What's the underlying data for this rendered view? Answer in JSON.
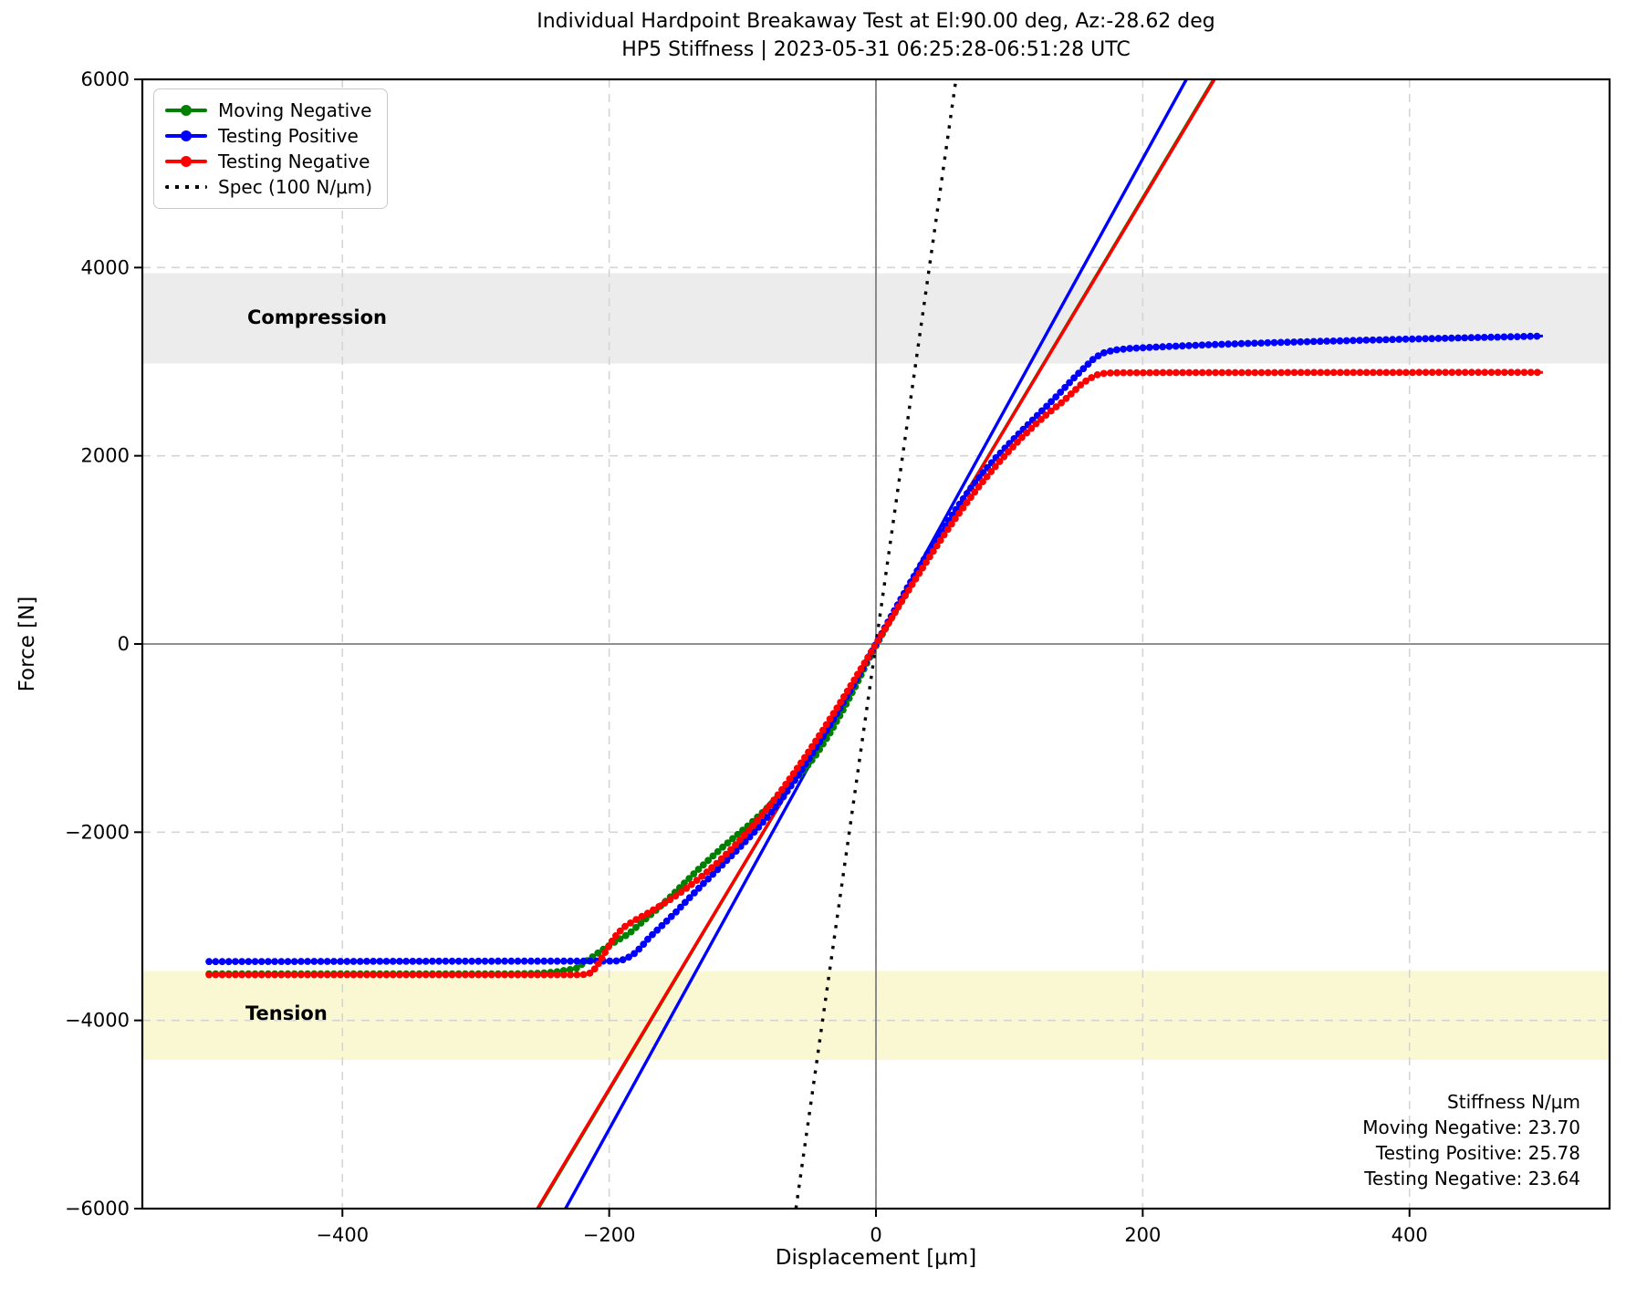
{
  "title": {
    "line1": "Individual Hardpoint Breakaway Test at El:90.00 deg, Az:-28.62 deg",
    "line2": "HP5 Stiffness | 2023-05-31 06:25:28-06:51:28 UTC"
  },
  "axes": {
    "xlabel": "Displacement [μm]",
    "ylabel": "Force [N]"
  },
  "legend": {
    "items": [
      {
        "label": "Moving Negative",
        "color": "#008000",
        "marker": true,
        "dotted": false
      },
      {
        "label": "Testing Positive",
        "color": "#0000ff",
        "marker": true,
        "dotted": false
      },
      {
        "label": "Testing Negative",
        "color": "#ff0000",
        "marker": true,
        "dotted": false
      },
      {
        "label": "Spec (100 N/μm)",
        "color": "#000000",
        "marker": false,
        "dotted": true
      }
    ]
  },
  "bands": {
    "compression": {
      "label": "Compression",
      "from_n": 2980,
      "to_n": 3940,
      "color": "#ececec",
      "label_x_um": -419,
      "label_y_n": 3470
    },
    "tension": {
      "label": "Tension",
      "from_n": -4420,
      "to_n": -3475,
      "color": "#faf8d2",
      "label_x_um": -442,
      "label_y_n": -3930
    }
  },
  "stiffness_box": {
    "title": "Stiffness N/μm",
    "line1": "Moving Negative: 23.70",
    "line2": "Testing Positive: 25.78",
    "line3": "Testing Negative: 23.64"
  },
  "chart_data": {
    "type": "line",
    "title": "Individual Hardpoint Breakaway Test at El:90.00 deg, Az:-28.62 deg — HP5 Stiffness | 2023-05-31 06:25:28-06:51:28 UTC",
    "xlabel": "Displacement [μm]",
    "ylabel": "Force [N]",
    "xlim": [
      -550,
      550
    ],
    "ylim": [
      -6000,
      6000
    ],
    "grid": true,
    "legend_position": "upper left",
    "xticks": [
      {
        "v": -400,
        "label": "−400"
      },
      {
        "v": -200,
        "label": "−200"
      },
      {
        "v": 0,
        "label": "0"
      },
      {
        "v": 200,
        "label": "200"
      },
      {
        "v": 400,
        "label": "400"
      }
    ],
    "yticks": [
      {
        "v": -6000,
        "label": "−6000"
      },
      {
        "v": -4000,
        "label": "−4000"
      },
      {
        "v": -2000,
        "label": "−2000"
      },
      {
        "v": 0,
        "label": "0"
      },
      {
        "v": 2000,
        "label": "2000"
      },
      {
        "v": 4000,
        "label": "4000"
      },
      {
        "v": 6000,
        "label": "6000"
      }
    ],
    "zero_lines": {
      "color": "#808080"
    },
    "bands": [
      {
        "name": "compression",
        "y_from": 2980,
        "y_to": 3940,
        "color": "#ececec"
      },
      {
        "name": "tension",
        "y_from": -4420,
        "y_to": -3475,
        "color": "#faf8d2"
      }
    ],
    "fit_lines": [
      {
        "name": "Moving Negative fit",
        "slope_n_per_um": 23.7,
        "color": "#008000",
        "dotted": false
      },
      {
        "name": "Testing Positive fit",
        "slope_n_per_um": 25.78,
        "color": "#0000ff",
        "dotted": false
      },
      {
        "name": "Testing Negative fit",
        "slope_n_per_um": 23.64,
        "color": "#ff0000",
        "dotted": false
      },
      {
        "name": "Spec (100 N/μm)",
        "slope_n_per_um": 100.0,
        "color": "#000000",
        "dotted": true
      }
    ],
    "series": [
      {
        "name": "Moving Negative",
        "color": "#008000",
        "marker": "o",
        "saturation_negative_n": -3505,
        "points": [
          [
            -500,
            -3505
          ],
          [
            -450,
            -3505
          ],
          [
            -400,
            -3505
          ],
          [
            -350,
            -3505
          ],
          [
            -300,
            -3505
          ],
          [
            -275,
            -3505
          ],
          [
            -260,
            -3503
          ],
          [
            -250,
            -3497
          ],
          [
            -240,
            -3485
          ],
          [
            -232,
            -3465
          ],
          [
            -225,
            -3450
          ],
          [
            -215,
            -3350
          ],
          [
            -205,
            -3250
          ],
          [
            -195,
            -3160
          ],
          [
            -185,
            -3077
          ],
          [
            -175,
            -2950
          ],
          [
            -165,
            -2830
          ],
          [
            -155,
            -2700
          ],
          [
            -145,
            -2560
          ],
          [
            -135,
            -2420
          ],
          [
            -125,
            -2290
          ],
          [
            -115,
            -2160
          ],
          [
            -105,
            -2040
          ],
          [
            -95,
            -1920
          ],
          [
            -85,
            -1790
          ],
          [
            -75,
            -1650
          ],
          [
            -65,
            -1510
          ],
          [
            -55,
            -1360
          ],
          [
            -45,
            -1180
          ],
          [
            -35,
            -960
          ],
          [
            -25,
            -710
          ],
          [
            -15,
            -440
          ],
          [
            -5,
            -150
          ],
          [
            5,
            110
          ],
          [
            15,
            360
          ],
          [
            25,
            600
          ],
          [
            35,
            830
          ],
          [
            45,
            1060
          ],
          [
            55,
            1280
          ],
          [
            65,
            1490
          ]
        ]
      },
      {
        "name": "Testing Positive",
        "color": "#0000ff",
        "marker": "o",
        "saturation_negative_n": -3370,
        "saturation_positive_n": 3270,
        "points": [
          [
            -500,
            -3375
          ],
          [
            -450,
            -3374
          ],
          [
            -400,
            -3373
          ],
          [
            -350,
            -3372
          ],
          [
            -300,
            -3371
          ],
          [
            -250,
            -3370
          ],
          [
            -220,
            -3370
          ],
          [
            -200,
            -3369
          ],
          [
            -194,
            -3368
          ],
          [
            -188,
            -3350
          ],
          [
            -182,
            -3300
          ],
          [
            -176,
            -3220
          ],
          [
            -170,
            -3120
          ],
          [
            -164,
            -3040
          ],
          [
            -158,
            -2960
          ],
          [
            -150,
            -2850
          ],
          [
            -140,
            -2700
          ],
          [
            -130,
            -2555
          ],
          [
            -120,
            -2415
          ],
          [
            -110,
            -2275
          ],
          [
            -100,
            -2130
          ],
          [
            -90,
            -1980
          ],
          [
            -80,
            -1815
          ],
          [
            -70,
            -1635
          ],
          [
            -60,
            -1430
          ],
          [
            -50,
            -1215
          ],
          [
            -40,
            -990
          ],
          [
            -30,
            -755
          ],
          [
            -20,
            -510
          ],
          [
            -10,
            -258
          ],
          [
            0,
            0
          ],
          [
            10,
            258
          ],
          [
            20,
            510
          ],
          [
            30,
            755
          ],
          [
            40,
            990
          ],
          [
            50,
            1215
          ],
          [
            60,
            1430
          ],
          [
            70,
            1635
          ],
          [
            80,
            1815
          ],
          [
            90,
            1980
          ],
          [
            100,
            2130
          ],
          [
            110,
            2275
          ],
          [
            120,
            2415
          ],
          [
            130,
            2555
          ],
          [
            140,
            2700
          ],
          [
            150,
            2850
          ],
          [
            158,
            2960
          ],
          [
            164,
            3040
          ],
          [
            170,
            3090
          ],
          [
            178,
            3122
          ],
          [
            190,
            3140
          ],
          [
            210,
            3155
          ],
          [
            230,
            3168
          ],
          [
            250,
            3180
          ],
          [
            275,
            3192
          ],
          [
            300,
            3203
          ],
          [
            325,
            3213
          ],
          [
            350,
            3222
          ],
          [
            375,
            3231
          ],
          [
            400,
            3240
          ],
          [
            425,
            3248
          ],
          [
            450,
            3256
          ],
          [
            475,
            3264
          ],
          [
            500,
            3272
          ]
        ]
      },
      {
        "name": "Testing Negative",
        "color": "#ff0000",
        "marker": "o",
        "saturation_negative_n": -3515,
        "saturation_positive_n": 2885,
        "points": [
          [
            -500,
            -3515
          ],
          [
            -450,
            -3515
          ],
          [
            -400,
            -3515
          ],
          [
            -350,
            -3515
          ],
          [
            -300,
            -3515
          ],
          [
            -250,
            -3515
          ],
          [
            -225,
            -3515
          ],
          [
            -217,
            -3512
          ],
          [
            -213,
            -3490
          ],
          [
            -209,
            -3420
          ],
          [
            -204,
            -3300
          ],
          [
            -199,
            -3180
          ],
          [
            -194,
            -3080
          ],
          [
            -188,
            -3000
          ],
          [
            -180,
            -2930
          ],
          [
            -170,
            -2852
          ],
          [
            -160,
            -2768
          ],
          [
            -150,
            -2676
          ],
          [
            -140,
            -2575
          ],
          [
            -130,
            -2463
          ],
          [
            -120,
            -2339
          ],
          [
            -110,
            -2203
          ],
          [
            -100,
            -2055
          ],
          [
            -90,
            -1895
          ],
          [
            -80,
            -1723
          ],
          [
            -70,
            -1539
          ],
          [
            -60,
            -1343
          ],
          [
            -50,
            -1136
          ],
          [
            -40,
            -921
          ],
          [
            -30,
            -698
          ],
          [
            -20,
            -469
          ],
          [
            -10,
            -236
          ],
          [
            0,
            0
          ],
          [
            10,
            236
          ],
          [
            20,
            469
          ],
          [
            30,
            698
          ],
          [
            40,
            921
          ],
          [
            50,
            1136
          ],
          [
            60,
            1343
          ],
          [
            70,
            1539
          ],
          [
            80,
            1723
          ],
          [
            90,
            1895
          ],
          [
            100,
            2055
          ],
          [
            110,
            2203
          ],
          [
            120,
            2339
          ],
          [
            130,
            2463
          ],
          [
            140,
            2575
          ],
          [
            148,
            2680
          ],
          [
            154,
            2760
          ],
          [
            160,
            2820
          ],
          [
            166,
            2860
          ],
          [
            172,
            2878
          ],
          [
            180,
            2882
          ],
          [
            200,
            2883
          ],
          [
            250,
            2884
          ],
          [
            300,
            2884
          ],
          [
            350,
            2885
          ],
          [
            400,
            2885
          ],
          [
            450,
            2886
          ],
          [
            500,
            2886
          ]
        ]
      }
    ]
  }
}
